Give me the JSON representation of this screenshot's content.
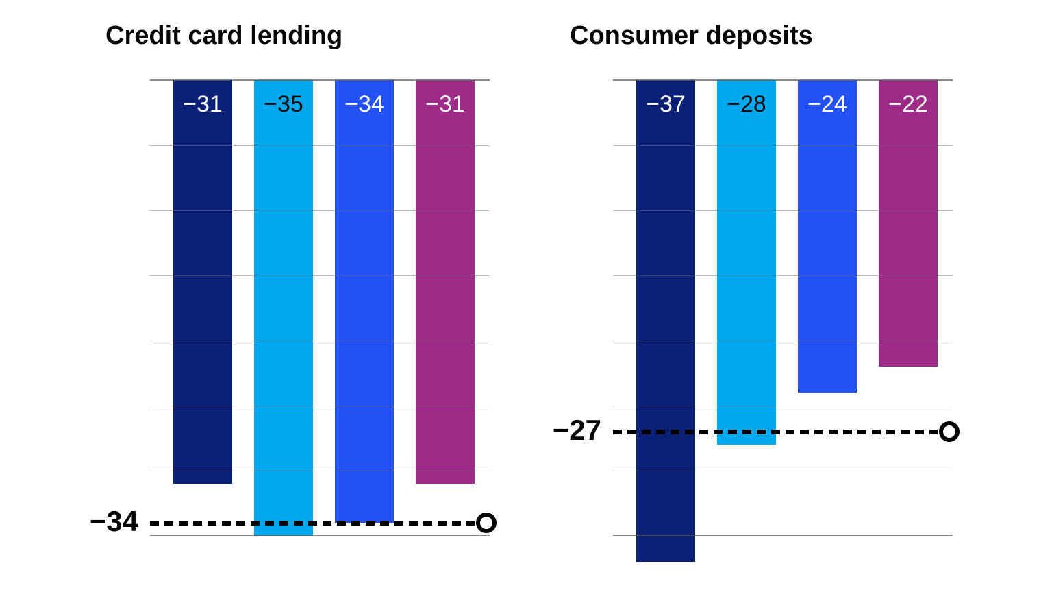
{
  "page": {
    "background": "#ffffff"
  },
  "palette": {
    "navy": "#0a2076",
    "cyan": "#00a8f0",
    "blue": "#2451f5",
    "magenta": "#9d2b87",
    "gridline": "#b5b5b5",
    "axis_line": "#8c8c8c",
    "average_line": "#000000",
    "label_on_light": "#0a0a0a",
    "label_on_dark": "#ffffff"
  },
  "chart_data": [
    {
      "type": "bar",
      "title": "Credit card lending",
      "values": [
        -31,
        -35,
        -34,
        -31
      ],
      "bar_labels": [
        "−31",
        "−35",
        "−34",
        "−31"
      ],
      "bar_colors": [
        "navy",
        "cyan",
        "blue",
        "magenta"
      ],
      "bar_label_colors": [
        "#ffffff",
        "#0a0a0a",
        "#ffffff",
        "#ffffff"
      ],
      "average_line": {
        "label": "−34",
        "value": -34,
        "style": "dotted",
        "marker": "open-circle"
      },
      "ylim": [
        -35,
        0
      ],
      "gridline_step": 5,
      "grid": true,
      "legend": false,
      "xlabel": "",
      "ylabel": ""
    },
    {
      "type": "bar",
      "title": "Consumer deposits",
      "values": [
        -37,
        -28,
        -24,
        -22
      ],
      "bar_labels": [
        "−37",
        "−28",
        "−24",
        "−22"
      ],
      "bar_colors": [
        "navy",
        "cyan",
        "blue",
        "magenta"
      ],
      "bar_label_colors": [
        "#ffffff",
        "#0a0a0a",
        "#ffffff",
        "#ffffff"
      ],
      "average_line": {
        "label": "−27",
        "value": -27,
        "style": "dotted",
        "marker": "open-circle"
      },
      "ylim": [
        -35,
        0
      ],
      "gridline_step": 5,
      "grid": true,
      "legend": false,
      "xlabel": "",
      "ylabel": ""
    }
  ]
}
